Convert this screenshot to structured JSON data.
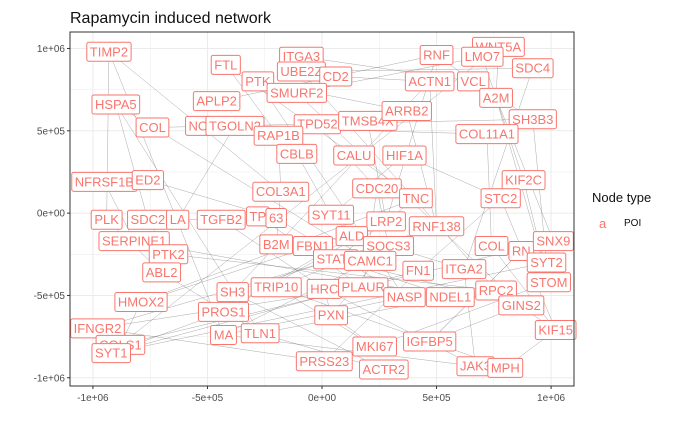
{
  "chart_data": {
    "type": "scatter",
    "title": "Rapamycin induced network",
    "xlabel": "",
    "ylabel": "",
    "xlim": [
      -1100000,
      1100000
    ],
    "ylim": [
      -1050000,
      1100000
    ],
    "xticks": [
      -1000000,
      -500000,
      0,
      500000,
      1000000
    ],
    "xtick_labels": [
      "-1e+06",
      "-5e+05",
      "0e+00",
      "5e+05",
      "1e+06"
    ],
    "yticks": [
      -1000000,
      -500000,
      0,
      500000,
      1000000
    ],
    "ytick_labels": [
      "-1e+06",
      "-5e+05",
      "0e+00",
      "5e+05",
      "1e+06"
    ],
    "grid": true,
    "legend": {
      "title": "Node type",
      "entries": [
        {
          "key": "a",
          "label": "POI",
          "color": "#F8766D"
        }
      ],
      "placement": "right"
    },
    "label_color": "#F8766D",
    "edge_color": "#555555",
    "nodes": [
      {
        "label": "TIMP2",
        "x": -930000,
        "y": 980000
      },
      {
        "label": "HSPA5",
        "x": -900000,
        "y": 660000
      },
      {
        "label": "FTL",
        "x": -420000,
        "y": 900000
      },
      {
        "label": "PTK",
        "x": -280000,
        "y": 800000
      },
      {
        "label": "ITGA3",
        "x": -90000,
        "y": 950000
      },
      {
        "label": "UBE2Z",
        "x": -90000,
        "y": 860000
      },
      {
        "label": "CD2",
        "x": 60000,
        "y": 830000
      },
      {
        "label": "SMURF2",
        "x": -110000,
        "y": 730000
      },
      {
        "label": "APLP2",
        "x": -460000,
        "y": 680000
      },
      {
        "label": "COL",
        "x": -740000,
        "y": 520000
      },
      {
        "label": "NO",
        "x": -540000,
        "y": 530000
      },
      {
        "label": "TGOLN2",
        "x": -380000,
        "y": 530000
      },
      {
        "label": "TPD52",
        "x": -20000,
        "y": 540000
      },
      {
        "label": "RAP1B",
        "x": -190000,
        "y": 470000
      },
      {
        "label": "CBLB",
        "x": -110000,
        "y": 360000
      },
      {
        "label": "TMSB4X",
        "x": 200000,
        "y": 560000
      },
      {
        "label": "ARRB2",
        "x": 370000,
        "y": 620000
      },
      {
        "label": "CALU",
        "x": 140000,
        "y": 350000
      },
      {
        "label": "HIF1A",
        "x": 360000,
        "y": 350000
      },
      {
        "label": "RNF",
        "x": 500000,
        "y": 960000
      },
      {
        "label": "WNT5A",
        "x": 770000,
        "y": 1010000
      },
      {
        "label": "LMO7",
        "x": 700000,
        "y": 950000
      },
      {
        "label": "SDC4",
        "x": 920000,
        "y": 880000
      },
      {
        "label": "ACTN1",
        "x": 470000,
        "y": 800000
      },
      {
        "label": "VCL",
        "x": 660000,
        "y": 800000
      },
      {
        "label": "A2M",
        "x": 760000,
        "y": 700000
      },
      {
        "label": "SH3B3",
        "x": 920000,
        "y": 570000
      },
      {
        "label": "COL11A1",
        "x": 720000,
        "y": 480000
      },
      {
        "label": "KIF2C",
        "x": 880000,
        "y": 200000
      },
      {
        "label": "STC2",
        "x": 780000,
        "y": 90000
      },
      {
        "label": "NFRSF1B",
        "x": -950000,
        "y": 190000
      },
      {
        "label": "ED2",
        "x": -760000,
        "y": 200000
      },
      {
        "label": "COL3A1",
        "x": -180000,
        "y": 130000
      },
      {
        "label": "CDC20",
        "x": 240000,
        "y": 150000
      },
      {
        "label": "TNC",
        "x": 410000,
        "y": 90000
      },
      {
        "label": "SYT11",
        "x": 40000,
        "y": -10000
      },
      {
        "label": "LRP2",
        "x": 280000,
        "y": -50000
      },
      {
        "label": "RNF138",
        "x": 500000,
        "y": -80000
      },
      {
        "label": "PLK",
        "x": -940000,
        "y": -40000
      },
      {
        "label": "SDC2",
        "x": -760000,
        "y": -40000
      },
      {
        "label": "LA",
        "x": -630000,
        "y": -40000
      },
      {
        "label": "TGFB2",
        "x": -440000,
        "y": -40000
      },
      {
        "label": "TP",
        "x": -280000,
        "y": -20000
      },
      {
        "label": "63",
        "x": -200000,
        "y": -30000
      },
      {
        "label": "SERPINE1",
        "x": -820000,
        "y": -170000
      },
      {
        "label": "PTK2",
        "x": -670000,
        "y": -250000
      },
      {
        "label": "B2M",
        "x": -200000,
        "y": -190000
      },
      {
        "label": "FBN1",
        "x": -40000,
        "y": -200000
      },
      {
        "label": "ALD",
        "x": 130000,
        "y": -140000
      },
      {
        "label": "SOCS3",
        "x": 290000,
        "y": -200000
      },
      {
        "label": "STAT6",
        "x": 60000,
        "y": -280000
      },
      {
        "label": "CAMC1",
        "x": 210000,
        "y": -290000
      },
      {
        "label": "ABL2",
        "x": -700000,
        "y": -360000
      },
      {
        "label": "COL",
        "x": 740000,
        "y": -200000
      },
      {
        "label": "RN",
        "x": 870000,
        "y": -230000
      },
      {
        "label": "SNX9",
        "x": 1010000,
        "y": -170000
      },
      {
        "label": "SYT2",
        "x": 980000,
        "y": -300000
      },
      {
        "label": "STOM",
        "x": 990000,
        "y": -420000
      },
      {
        "label": "FN1",
        "x": 420000,
        "y": -350000
      },
      {
        "label": "ITGA2",
        "x": 620000,
        "y": -340000
      },
      {
        "label": "SH3",
        "x": -390000,
        "y": -480000
      },
      {
        "label": "TRIP10",
        "x": -200000,
        "y": -450000
      },
      {
        "label": "HRC",
        "x": 10000,
        "y": -460000
      },
      {
        "label": "PLAUR",
        "x": 180000,
        "y": -450000
      },
      {
        "label": "NASP",
        "x": 360000,
        "y": -510000
      },
      {
        "label": "NDEL1",
        "x": 560000,
        "y": -510000
      },
      {
        "label": "RPC2",
        "x": 760000,
        "y": -470000
      },
      {
        "label": "GINS2",
        "x": 870000,
        "y": -560000
      },
      {
        "label": "HMOX2",
        "x": -790000,
        "y": -540000
      },
      {
        "label": "PROS1",
        "x": -430000,
        "y": -600000
      },
      {
        "label": "PXN",
        "x": 40000,
        "y": -620000
      },
      {
        "label": "IFNGR2",
        "x": -980000,
        "y": -700000
      },
      {
        "label": "MA",
        "x": -430000,
        "y": -740000
      },
      {
        "label": "TLN1",
        "x": -270000,
        "y": -730000
      },
      {
        "label": "KIF15",
        "x": 1020000,
        "y": -710000
      },
      {
        "label": "IGFBP5",
        "x": 470000,
        "y": -780000
      },
      {
        "label": "COLS1",
        "x": -880000,
        "y": -800000
      },
      {
        "label": "SYT1",
        "x": -920000,
        "y": -850000
      },
      {
        "label": "MKI67",
        "x": 230000,
        "y": -810000
      },
      {
        "label": "PRSS23",
        "x": 10000,
        "y": -900000
      },
      {
        "label": "JAK3",
        "x": 670000,
        "y": -930000
      },
      {
        "label": "ACTR2",
        "x": 270000,
        "y": -950000
      },
      {
        "label": "MPH",
        "x": 800000,
        "y": -940000
      }
    ],
    "edges": [
      [
        0,
        32
      ],
      [
        1,
        39
      ],
      [
        0,
        38
      ],
      [
        1,
        51
      ],
      [
        2,
        17
      ],
      [
        2,
        13
      ],
      [
        3,
        16
      ],
      [
        4,
        24
      ],
      [
        5,
        22
      ],
      [
        6,
        23
      ],
      [
        7,
        21
      ],
      [
        8,
        19
      ],
      [
        9,
        26
      ],
      [
        10,
        27
      ],
      [
        11,
        14
      ],
      [
        12,
        33
      ],
      [
        13,
        32
      ],
      [
        14,
        35
      ],
      [
        15,
        36
      ],
      [
        16,
        37
      ],
      [
        17,
        34
      ],
      [
        18,
        29
      ],
      [
        19,
        24
      ],
      [
        20,
        25
      ],
      [
        21,
        28
      ],
      [
        22,
        59
      ],
      [
        23,
        60
      ],
      [
        24,
        26
      ],
      [
        25,
        55
      ],
      [
        26,
        56
      ],
      [
        27,
        53
      ],
      [
        28,
        57
      ],
      [
        29,
        58
      ],
      [
        30,
        44
      ],
      [
        31,
        43
      ],
      [
        32,
        46
      ],
      [
        33,
        49
      ],
      [
        34,
        50
      ],
      [
        35,
        48
      ],
      [
        36,
        47
      ],
      [
        37,
        61
      ],
      [
        38,
        52
      ],
      [
        39,
        45
      ],
      [
        40,
        41
      ],
      [
        41,
        62
      ],
      [
        42,
        63
      ],
      [
        43,
        64
      ],
      [
        44,
        65
      ],
      [
        45,
        66
      ],
      [
        46,
        67
      ],
      [
        47,
        68
      ],
      [
        48,
        69
      ],
      [
        49,
        70
      ],
      [
        50,
        71
      ],
      [
        51,
        72
      ],
      [
        52,
        73
      ],
      [
        53,
        74
      ],
      [
        54,
        75
      ],
      [
        55,
        76
      ],
      [
        56,
        77
      ],
      [
        57,
        78
      ],
      [
        58,
        79
      ],
      [
        59,
        80
      ],
      [
        60,
        81
      ],
      [
        61,
        82
      ],
      [
        62,
        70
      ],
      [
        63,
        71
      ],
      [
        64,
        72
      ],
      [
        65,
        73
      ],
      [
        66,
        74
      ],
      [
        67,
        75
      ],
      [
        68,
        76
      ],
      [
        69,
        77
      ],
      [
        70,
        78
      ],
      [
        71,
        79
      ],
      [
        72,
        80
      ],
      [
        73,
        81
      ],
      [
        74,
        82
      ],
      [
        75,
        54
      ],
      [
        76,
        20
      ],
      [
        0,
        72
      ],
      [
        1,
        73
      ],
      [
        3,
        64
      ],
      [
        5,
        66
      ],
      [
        7,
        67
      ],
      [
        18,
        35
      ],
      [
        19,
        36
      ],
      [
        23,
        37
      ],
      [
        25,
        57
      ],
      [
        29,
        74
      ],
      [
        33,
        63
      ],
      [
        34,
        68
      ],
      [
        36,
        69
      ],
      [
        37,
        60
      ],
      [
        49,
        59
      ],
      [
        50,
        65
      ],
      [
        58,
        77
      ],
      [
        61,
        78
      ],
      [
        62,
        80
      ],
      [
        11,
        40
      ]
    ]
  }
}
